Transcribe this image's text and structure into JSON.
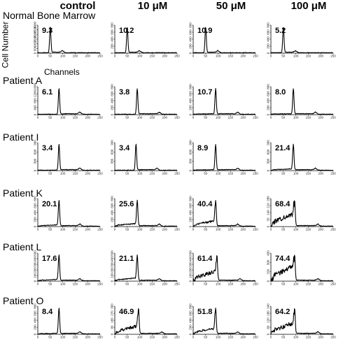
{
  "columns": [
    "control",
    "10 μM",
    "50 μM",
    "100 μM"
  ],
  "y_axis_label": "Cell Number",
  "x_axis_label": "Channels",
  "chart_data": {
    "type": "line",
    "subtype": "dna-histogram-grid",
    "xlabel": "Channels",
    "ylabel": "Cell Number",
    "xlim": [
      0,
      250
    ],
    "x_ticks": [
      "0",
      "50",
      "100",
      "150",
      "200",
      "250"
    ],
    "columns": [
      "control",
      "10 μM",
      "50 μM",
      "100 μM"
    ],
    "rows": [
      {
        "label": "Normal Bone Marrow",
        "panels": [
          {
            "value": "9.3",
            "peak_x": 50,
            "g2_x": 100,
            "subg1": 0.0,
            "ymax": 3000,
            "yticks": [
              "0",
              "500",
              "1000",
              "1500",
              "2000",
              "2500",
              "3000"
            ]
          },
          {
            "value": "10.2",
            "peak_x": 50,
            "g2_x": 100,
            "subg1": 0.0,
            "ymax": 800,
            "yticks": [
              "0",
              "200",
              "400",
              "600",
              "800"
            ]
          },
          {
            "value": "10.9",
            "peak_x": 50,
            "g2_x": 100,
            "subg1": 0.0,
            "ymax": 800,
            "yticks": [
              "0",
              "200",
              "400",
              "600",
              "800"
            ]
          },
          {
            "value": "5.2",
            "peak_x": 50,
            "g2_x": 100,
            "subg1": 0.0,
            "ymax": 800,
            "yticks": [
              "0",
              "200",
              "400",
              "600",
              "800"
            ]
          }
        ]
      },
      {
        "label": "Patient A",
        "panels": [
          {
            "value": "6.1",
            "peak_x": 85,
            "g2_x": 170,
            "subg1": 0.0,
            "ymax": 1600,
            "yticks": [
              "0",
              "400",
              "800",
              "1200",
              "1600"
            ]
          },
          {
            "value": "3.8",
            "peak_x": 90,
            "g2_x": 180,
            "subg1": 0.0,
            "ymax": 800,
            "yticks": [
              "0",
              "200",
              "400",
              "600",
              "800"
            ]
          },
          {
            "value": "10.7",
            "peak_x": 90,
            "g2_x": 180,
            "subg1": 0.02,
            "ymax": 800,
            "yticks": [
              "0",
              "200",
              "400",
              "600",
              "800"
            ]
          },
          {
            "value": "8.0",
            "peak_x": 90,
            "g2_x": 180,
            "subg1": 0.02,
            "ymax": 800,
            "yticks": [
              "0",
              "200",
              "400",
              "600",
              "800"
            ]
          }
        ]
      },
      {
        "label": "Patient I",
        "panels": [
          {
            "value": "3.4",
            "peak_x": 85,
            "g2_x": 170,
            "subg1": 0.0,
            "ymax": 900,
            "yticks": [
              "0",
              "300",
              "600",
              "900"
            ]
          },
          {
            "value": "3.4",
            "peak_x": 85,
            "g2_x": 170,
            "subg1": 0.0,
            "ymax": 900,
            "yticks": [
              "0",
              "300",
              "600",
              "900"
            ]
          },
          {
            "value": "8.9",
            "peak_x": 90,
            "g2_x": 180,
            "subg1": 0.02,
            "ymax": 900,
            "yticks": [
              "0",
              "300",
              "600",
              "900"
            ]
          },
          {
            "value": "21.4",
            "peak_x": 90,
            "g2_x": 180,
            "subg1": 0.05,
            "ymax": 900,
            "yticks": [
              "0",
              "300",
              "600",
              "900"
            ]
          }
        ]
      },
      {
        "label": "Patient K",
        "panels": [
          {
            "value": "20.1",
            "peak_x": 85,
            "g2_x": 170,
            "subg1": 0.05,
            "ymax": 800,
            "yticks": [
              "0",
              "200",
              "400",
              "600",
              "800"
            ]
          },
          {
            "value": "25.6",
            "peak_x": 90,
            "g2_x": 180,
            "subg1": 0.1,
            "ymax": 800,
            "yticks": [
              "0",
              "200",
              "400",
              "600",
              "800"
            ]
          },
          {
            "value": "40.4",
            "peak_x": 90,
            "g2_x": 180,
            "subg1": 0.2,
            "ymax": 800,
            "yticks": [
              "0",
              "200",
              "400",
              "600",
              "800"
            ]
          },
          {
            "value": "68.4",
            "peak_x": 95,
            "g2_x": 190,
            "subg1": 0.45,
            "ymax": 280,
            "yticks": [
              "0",
              "70",
              "140",
              "210",
              "280"
            ]
          }
        ]
      },
      {
        "label": "Patient L",
        "panels": [
          {
            "value": "17.6",
            "peak_x": 85,
            "g2_x": 170,
            "subg1": 0.05,
            "ymax": 500,
            "yticks": [
              "0",
              "100",
              "200",
              "300",
              "400",
              "500"
            ]
          },
          {
            "value": "21.1",
            "peak_x": 90,
            "g2_x": 180,
            "subg1": 0.1,
            "ymax": 500,
            "yticks": [
              "0",
              "100",
              "200",
              "300",
              "400",
              "500"
            ]
          },
          {
            "value": "61.4",
            "peak_x": 95,
            "g2_x": 190,
            "subg1": 0.35,
            "ymax": 500,
            "yticks": [
              "0",
              "100",
              "200",
              "300",
              "400",
              "500"
            ]
          },
          {
            "value": "74.4",
            "peak_x": 95,
            "g2_x": 190,
            "subg1": 0.55,
            "ymax": 450,
            "yticks": [
              "0",
              "150",
              "300",
              "450"
            ]
          }
        ]
      },
      {
        "label": "Patient O",
        "panels": [
          {
            "value": "8.4",
            "peak_x": 85,
            "g2_x": 170,
            "subg1": 0.02,
            "ymax": 800,
            "yticks": [
              "0",
              "200",
              "400",
              "600",
              "800"
            ]
          },
          {
            "value": "46.9",
            "peak_x": 95,
            "g2_x": 190,
            "subg1": 0.3,
            "ymax": 400,
            "yticks": [
              "0",
              "90",
              "180",
              "270",
              "360"
            ]
          },
          {
            "value": "51.8",
            "peak_x": 90,
            "g2_x": 180,
            "subg1": 0.2,
            "ymax": 800,
            "yticks": [
              "0",
              "200",
              "400",
              "600",
              "800"
            ]
          },
          {
            "value": "64.2",
            "peak_x": 95,
            "g2_x": 190,
            "subg1": 0.4,
            "ymax": 240,
            "yticks": [
              "0",
              "60",
              "120",
              "180",
              "240"
            ]
          }
        ]
      }
    ]
  }
}
